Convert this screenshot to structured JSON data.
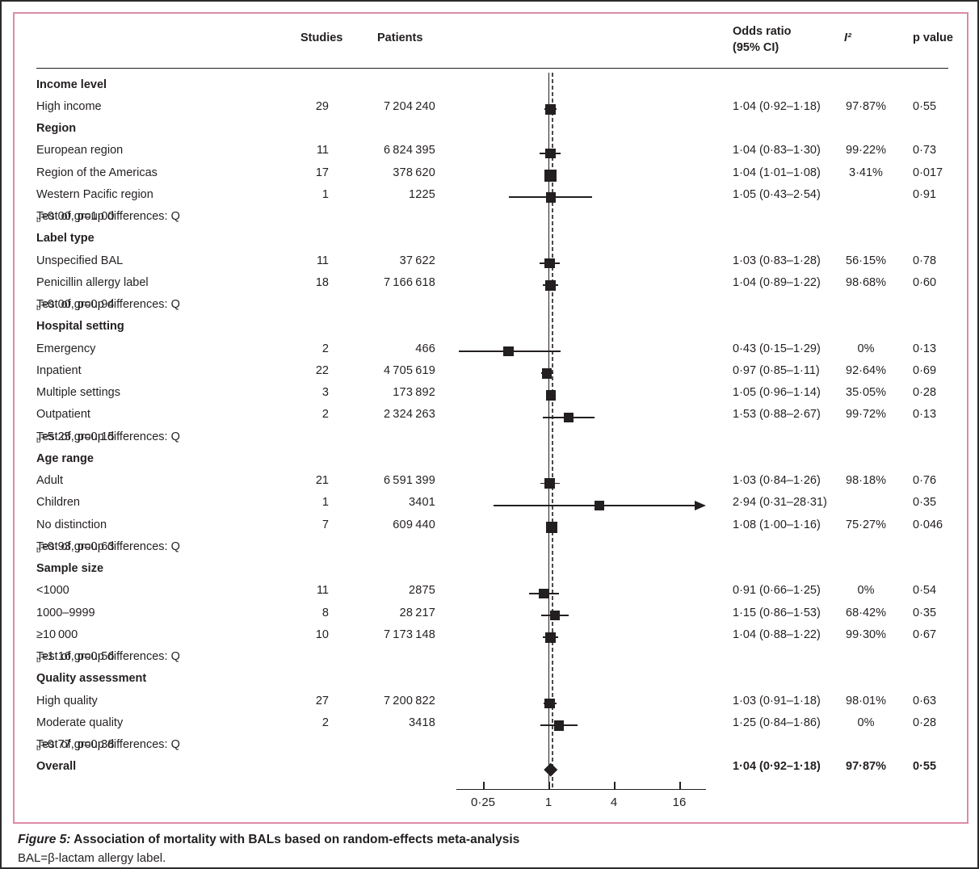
{
  "header": {
    "studies": "Studies",
    "patients": "Patients",
    "or_line1": "Odds ratio",
    "or_line2": "(95% CI)",
    "i2": "I²",
    "p": "p value"
  },
  "caption": {
    "fig": "Figure 5:",
    "title": " Association of mortality with BALs based on random-effects meta-analysis",
    "note": "BAL=β-lactam allergy label."
  },
  "chart_data": {
    "type": "forest",
    "x_scale": "log4",
    "xlim": [
      0.14,
      28
    ],
    "x_ticks": [
      {
        "v": 0.25,
        "label": "0·25"
      },
      {
        "v": 1,
        "label": "1"
      },
      {
        "v": 4,
        "label": "4"
      },
      {
        "v": 16,
        "label": "16"
      }
    ],
    "null_line": 1.0,
    "overall_dashed_line": 1.04,
    "columns": [
      "Studies",
      "Patients",
      "Odds ratio (95% CI)",
      "I²",
      "p value"
    ],
    "rows": [
      {
        "t": "section",
        "label": "Income level"
      },
      {
        "t": "study",
        "label": "High income",
        "studies": "29",
        "patients": "7 204 240",
        "or": "1·04 (0·92–1·18)",
        "i2": "97·87%",
        "p": "0·55",
        "est": 1.04,
        "lo": 0.92,
        "hi": 1.18
      },
      {
        "t": "section",
        "label": "Region"
      },
      {
        "t": "study",
        "label": "European region",
        "studies": "11",
        "patients": "6 824 395",
        "or": "1·04 (0·83–1·30)",
        "i2": "99·22%",
        "p": "0·73",
        "est": 1.04,
        "lo": 0.83,
        "hi": 1.3
      },
      {
        "t": "study",
        "label": "Region of the Americas",
        "studies": "17",
        "patients": "378 620",
        "or": "1·04 (1·01–1·08)",
        "i2": "3·41%",
        "p": "0·017",
        "est": 1.04,
        "lo": 1.01,
        "hi": 1.08,
        "size": 15
      },
      {
        "t": "study",
        "label": "Western Pacific region",
        "studies": "1",
        "patients": "1225",
        "or": "1·05 (0·43–2·54)",
        "i2": "",
        "p": "0·91",
        "est": 1.05,
        "lo": 0.43,
        "hi": 2.54
      },
      {
        "t": "test",
        "pre": "Test of group differences: Q",
        "sub": "b",
        "post": "=0·00, p=1·00"
      },
      {
        "t": "section",
        "label": "Label type"
      },
      {
        "t": "study",
        "label": "Unspecified BAL",
        "studies": "11",
        "patients": "37 622",
        "or": "1·03 (0·83–1·28)",
        "i2": "56·15%",
        "p": "0·78",
        "est": 1.03,
        "lo": 0.83,
        "hi": 1.28
      },
      {
        "t": "study",
        "label": "Penicillin allergy label",
        "studies": "18",
        "patients": "7 166 618",
        "or": "1·04 (0·89–1·22)",
        "i2": "98·68%",
        "p": "0·60",
        "est": 1.04,
        "lo": 0.89,
        "hi": 1.22
      },
      {
        "t": "test",
        "pre": "Test of group differences: Q",
        "sub": "b",
        "post": "=0·00, p=0·94"
      },
      {
        "t": "section",
        "label": "Hospital setting"
      },
      {
        "t": "study",
        "label": "Emergency",
        "studies": "2",
        "patients": "466",
        "or": "0·43 (0·15–1·29)",
        "i2": "0%",
        "p": "0·13",
        "est": 0.43,
        "lo": 0.15,
        "hi": 1.29
      },
      {
        "t": "study",
        "label": "Inpatient",
        "studies": "22",
        "patients": "4 705 619",
        "or": "0·97 (0·85–1·11)",
        "i2": "92·64%",
        "p": "0·69",
        "est": 0.97,
        "lo": 0.85,
        "hi": 1.11
      },
      {
        "t": "study",
        "label": "Multiple settings",
        "studies": "3",
        "patients": "173 892",
        "or": "1·05 (0·96–1·14)",
        "i2": "35·05%",
        "p": "0·28",
        "est": 1.05,
        "lo": 0.96,
        "hi": 1.14
      },
      {
        "t": "study",
        "label": "Outpatient",
        "studies": "2",
        "patients": "2 324 263",
        "or": "1·53 (0·88–2·67)",
        "i2": "99·72%",
        "p": "0·13",
        "est": 1.53,
        "lo": 0.88,
        "hi": 2.67
      },
      {
        "t": "test",
        "pre": "Test of group differences: Q",
        "sub": "b",
        "post": "=5·25, p=0·15"
      },
      {
        "t": "section",
        "label": "Age range"
      },
      {
        "t": "study",
        "label": "Adult",
        "studies": "21",
        "patients": "6 591 399",
        "or": "1·03 (0·84–1·26)",
        "i2": "98·18%",
        "p": "0·76",
        "est": 1.03,
        "lo": 0.84,
        "hi": 1.26
      },
      {
        "t": "study",
        "label": "Children",
        "studies": "1",
        "patients": "3401",
        "or": "2·94 (0·31–28·31)",
        "i2": "",
        "p": "0·35",
        "est": 2.94,
        "lo": 0.31,
        "hi": 28.31,
        "arrow": true
      },
      {
        "t": "study",
        "label": "No distinction",
        "studies": "7",
        "patients": "609 440",
        "or": "1·08 (1·00–1·16)",
        "i2": "75·27%",
        "p": "0·046",
        "est": 1.08,
        "lo": 1.0,
        "hi": 1.16,
        "size": 14
      },
      {
        "t": "test",
        "pre": "Test of group differences: Q",
        "sub": "b",
        "post": "=0·93, p=0·63"
      },
      {
        "t": "section",
        "label": "Sample size"
      },
      {
        "t": "study",
        "label": "<1000",
        "studies": "11",
        "patients": "2875",
        "or": "0·91 (0·66–1·25)",
        "i2": "0%",
        "p": "0·54",
        "est": 0.91,
        "lo": 0.66,
        "hi": 1.25
      },
      {
        "t": "study",
        "label": "1000–9999",
        "studies": "8",
        "patients": "28 217",
        "or": "1·15 (0·86–1·53)",
        "i2": "68·42%",
        "p": "0·35",
        "est": 1.15,
        "lo": 0.86,
        "hi": 1.53
      },
      {
        "t": "study",
        "label": "≥10 000",
        "studies": "10",
        "patients": "7 173 148",
        "or": "1·04 (0·88–1·22)",
        "i2": "99·30%",
        "p": "0·67",
        "est": 1.04,
        "lo": 0.88,
        "hi": 1.22
      },
      {
        "t": "test",
        "pre": "Test of group differences: Q",
        "sub": "b",
        "post": "=1·16, p=0·56"
      },
      {
        "t": "section",
        "label": "Quality assessment"
      },
      {
        "t": "study",
        "label": "High quality",
        "studies": "27",
        "patients": "7 200 822",
        "or": "1·03 (0·91–1·18)",
        "i2": "98·01%",
        "p": "0·63",
        "est": 1.03,
        "lo": 0.91,
        "hi": 1.18
      },
      {
        "t": "study",
        "label": "Moderate quality",
        "studies": "2",
        "patients": "3418",
        "or": "1·25 (0·84–1·86)",
        "i2": "0%",
        "p": "0·28",
        "est": 1.25,
        "lo": 0.84,
        "hi": 1.86
      },
      {
        "t": "test",
        "pre": "Test of group differences: Q",
        "sub": "b",
        "post": "=0·77, p=0·38"
      },
      {
        "t": "overall",
        "label": "Overall",
        "studies": "",
        "patients": "",
        "or": "1·04 (0·92–1·18)",
        "i2": "97·87%",
        "p": "0·55",
        "est": 1.04,
        "lo": 0.92,
        "hi": 1.18
      }
    ]
  }
}
